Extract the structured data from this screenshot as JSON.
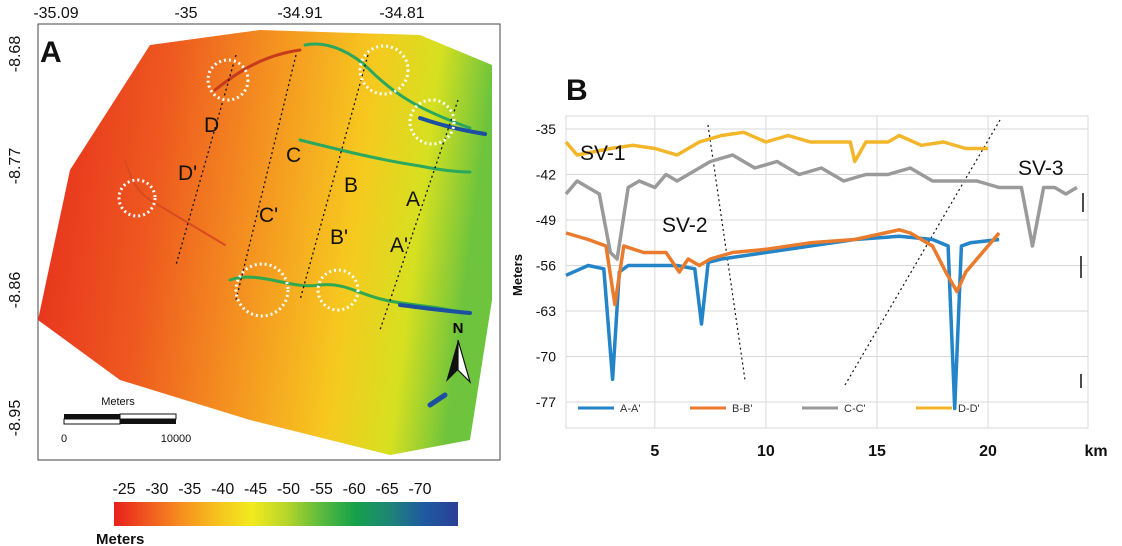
{
  "chart_data": [
    {
      "panel": "A",
      "type": "heatmap",
      "x_ticks": [
        "-35.09",
        "-35",
        "-34.91",
        "-34.81"
      ],
      "y_ticks": [
        "-8.68",
        "-8.77",
        "-8.86",
        "-8.95"
      ],
      "transects": [
        {
          "label": "A",
          "label_prime": "A'"
        },
        {
          "label": "B",
          "label_prime": "B'"
        },
        {
          "label": "C",
          "label_prime": "C'"
        },
        {
          "label": "D",
          "label_prime": "D'"
        }
      ],
      "scale_bar": {
        "title": "Meters",
        "start": "0",
        "end": "10000"
      },
      "north_label": "N",
      "colorbar": {
        "ticks": [
          "-25",
          "-30",
          "-35",
          "-40",
          "-45",
          "-50",
          "-55",
          "-60",
          "-65",
          "-70"
        ],
        "label": "Meters",
        "colors": [
          "#e8201c",
          "#f05a1e",
          "#f7901f",
          "#f6c21d",
          "#f2ea1e",
          "#b8d62a",
          "#5cbb3d",
          "#16a24a",
          "#1d8576",
          "#1f5aa0",
          "#2a3f97"
        ]
      }
    },
    {
      "panel": "B",
      "type": "line",
      "ylabel": "Meters",
      "xlabel": "km",
      "x_ticks": [
        5,
        10,
        15,
        20
      ],
      "y_ticks": [
        -35,
        -42,
        -49,
        -56,
        -63,
        -70,
        -77
      ],
      "xlim": [
        1,
        24.5
      ],
      "ylim": [
        -81,
        -33
      ],
      "annotations": [
        "SV-1",
        "SV-2",
        "SV-3"
      ],
      "series": [
        {
          "name": "A-A'",
          "color": "#2385c8",
          "x": [
            1,
            2,
            2.7,
            3.1,
            3.4,
            3.8,
            5,
            6,
            6.8,
            7.1,
            7.4,
            8,
            10,
            12,
            14,
            16,
            17.5,
            18.2,
            18.5,
            18.8,
            19.2,
            20.5
          ],
          "y": [
            -57.5,
            -56,
            -56.5,
            -73.5,
            -57,
            -56,
            -56,
            -56,
            -56.5,
            -65,
            -55.5,
            -55,
            -54,
            -53,
            -52,
            -51.5,
            -52,
            -53,
            -78,
            -53,
            -52.5,
            -52
          ]
        },
        {
          "name": "B-B'",
          "color": "#ea7a2c",
          "x": [
            1,
            2,
            2.8,
            3.2,
            3.6,
            4.5,
            5.5,
            6.1,
            6.5,
            7,
            7.5,
            8.5,
            10,
            12,
            14,
            16,
            16.5,
            17.5,
            18.1,
            18.6,
            19,
            20,
            20.5
          ],
          "y": [
            -51,
            -52,
            -53,
            -62,
            -53,
            -54,
            -54,
            -57,
            -55,
            -56,
            -55,
            -54,
            -53.5,
            -52.5,
            -52,
            -50.5,
            -51,
            -53,
            -57,
            -60,
            -57,
            -53,
            -51
          ]
        },
        {
          "name": "C-C'",
          "color": "#9a9a9a",
          "x": [
            1,
            1.5,
            2.5,
            3,
            3.3,
            3.8,
            4.3,
            5,
            5.5,
            6,
            6.5,
            7.5,
            8.5,
            9.5,
            10.5,
            11.5,
            12.5,
            13.5,
            14.5,
            15.5,
            16.5,
            17.5,
            18.5,
            19.5,
            20.5,
            21.5,
            22,
            22.5,
            23,
            23.5,
            24
          ],
          "y": [
            -45,
            -43,
            -45,
            -54,
            -55,
            -44,
            -43,
            -44,
            -42,
            -43,
            -42,
            -40,
            -39,
            -41,
            -40,
            -42,
            -41,
            -43,
            -42,
            -42,
            -41,
            -43,
            -43,
            -43,
            -44,
            -44,
            -53,
            -44,
            -44,
            -45,
            -44
          ]
        },
        {
          "name": "D-D'",
          "color": "#f3b52a",
          "x": [
            1,
            1.5,
            3,
            4,
            5,
            6,
            7,
            8,
            9,
            10,
            11,
            12,
            13,
            13.8,
            14,
            14.5,
            15.5,
            16,
            17,
            18,
            19,
            20
          ],
          "y": [
            -37,
            -39,
            -38,
            -37.5,
            -38,
            -39,
            -37,
            -36,
            -35.5,
            -37,
            -36,
            -37,
            -37,
            -37,
            -40,
            -37,
            -37,
            -36,
            -37.5,
            -37,
            -38,
            -38
          ]
        }
      ]
    }
  ]
}
